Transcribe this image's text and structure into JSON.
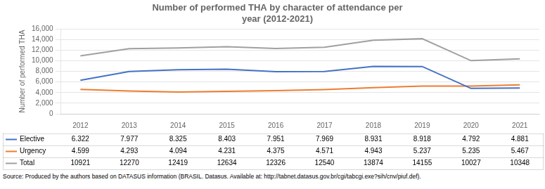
{
  "chart_data": {
    "type": "line",
    "title": "Number of performed THA by character of attendance per\nyear (2012-2021)",
    "y_label": "Number of performed THA",
    "x": [
      2012,
      2013,
      2014,
      2015,
      2016,
      2017,
      2018,
      2019,
      2020,
      2021
    ],
    "xlim": [
      2011.6,
      2021.4
    ],
    "xticks": [
      2012,
      2013,
      2014,
      2015,
      2016,
      2017,
      2018,
      2019,
      2020,
      2021
    ],
    "ylim": [
      0,
      16000
    ],
    "yticks": [
      0,
      {
        "value": 2000,
        "label": "2,000"
      },
      {
        "value": 4000,
        "label": "4,000"
      },
      {
        "value": 6000,
        "label": "6,000"
      },
      {
        "value": 8000,
        "label": "8,000"
      },
      {
        "value": 10000,
        "label": "10,000"
      },
      {
        "value": 12000,
        "label": "12,000"
      },
      {
        "value": 14000,
        "label": "14,000"
      },
      {
        "value": 16000,
        "label": "16,000"
      }
    ],
    "grid": true,
    "series": [
      {
        "name": "Elective",
        "color": "#4472c4",
        "values": [
          6322,
          7977,
          8325,
          8403,
          7951,
          7969,
          8931,
          8918,
          4792,
          4881
        ],
        "value_labels": [
          "6.322",
          "7.977",
          "8.325",
          "8.403",
          "7.951",
          "7.969",
          "8.931",
          "8.918",
          "4.792",
          "4.881"
        ]
      },
      {
        "name": "Urgency",
        "color": "#ed7d31",
        "values": [
          4599,
          4293,
          4094,
          4231,
          4375,
          4571,
          4943,
          5237,
          5235,
          5467
        ],
        "value_labels": [
          "4.599",
          "4.293",
          "4.094",
          "4.231",
          "4.375",
          "4.571",
          "4.943",
          "5.237",
          "5.235",
          "5.467"
        ]
      },
      {
        "name": "Total",
        "color": "#a0a0a0",
        "values": [
          10921,
          12270,
          12419,
          12634,
          12326,
          12540,
          13874,
          14155,
          10027,
          10348
        ]
      }
    ],
    "data_labels": true,
    "annotations": [
      "Source: Produced by the authors based on DATASUS information (BRASIL. Datasus. Available at: http://tabnet.datasus.gov.br/cgi/tabcgi.exe?sih/cnv/piuf.def)."
    ]
  }
}
